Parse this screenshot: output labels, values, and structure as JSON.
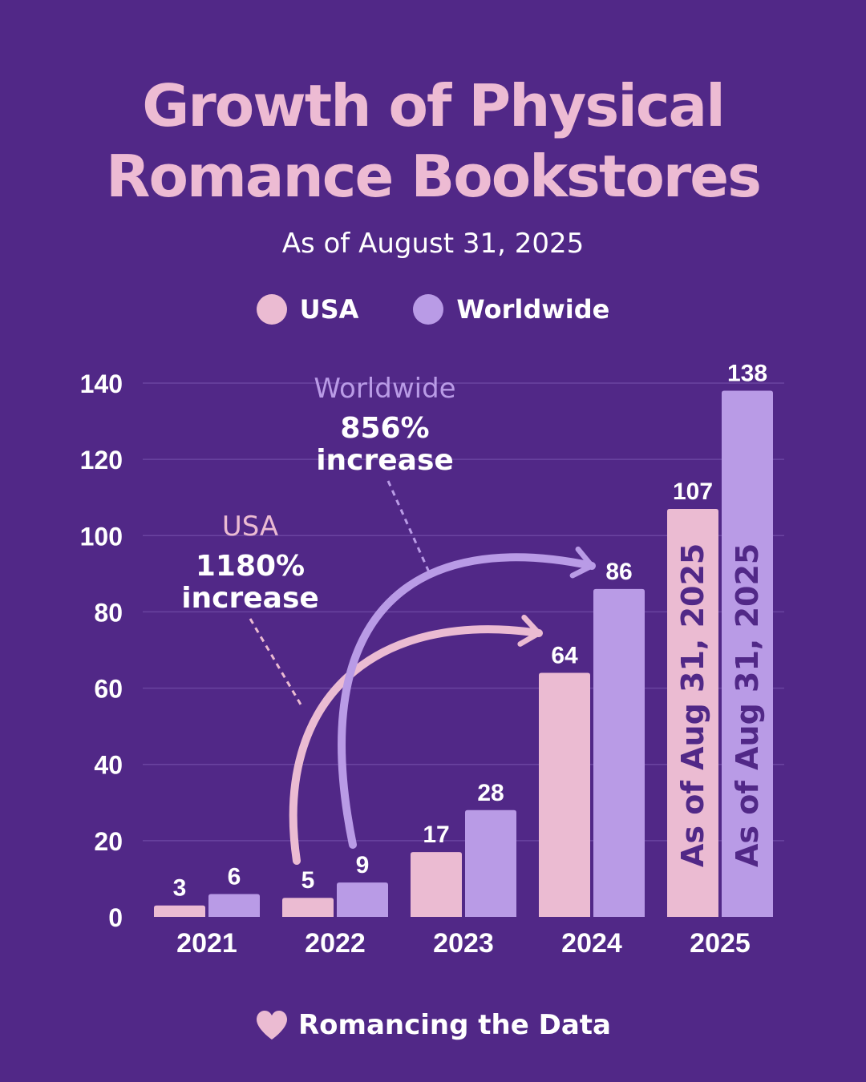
{
  "colors": {
    "background": "#512887",
    "usa": "#EBBBD2",
    "worldwide": "#B99BE6",
    "grid": "#6A44A0",
    "title": "#EDBBD3",
    "text": "#FFFFFF",
    "rotated_usa_text": "#512887"
  },
  "header": {
    "title_line1": "Growth of Physical",
    "title_line2": "Romance Bookstores",
    "subtitle": "As of August 31, 2025"
  },
  "footer": {
    "icon": "heart-icon",
    "text": "Romancing the Data"
  },
  "chart_data": {
    "type": "bar",
    "title": "Growth of Physical Romance Bookstores",
    "subtitle": "As of August 31, 2025",
    "categories": [
      "2021",
      "2022",
      "2023",
      "2024",
      "2025"
    ],
    "series": [
      {
        "name": "USA",
        "values": [
          3,
          5,
          17,
          64,
          107
        ]
      },
      {
        "name": "Worldwide",
        "values": [
          6,
          9,
          28,
          86,
          138
        ]
      }
    ],
    "ylim": [
      0,
      140
    ],
    "yticks": [
      0,
      20,
      40,
      60,
      80,
      100,
      120,
      140
    ],
    "grid": true,
    "legend": "top-center",
    "bar_notes": [
      {
        "category": "2025",
        "series": "USA",
        "text": "As of Aug 31, 2025"
      },
      {
        "category": "2025",
        "series": "Worldwide",
        "text": "As of Aug 31, 2025"
      }
    ],
    "annotations": [
      {
        "series": "USA",
        "name": "USA",
        "value": "1180%",
        "text": "increase",
        "from": "2022",
        "to": "2024"
      },
      {
        "series": "Worldwide",
        "name": "Worldwide",
        "value": "856%",
        "text": "increase",
        "from": "2022",
        "to": "2024"
      }
    ]
  }
}
